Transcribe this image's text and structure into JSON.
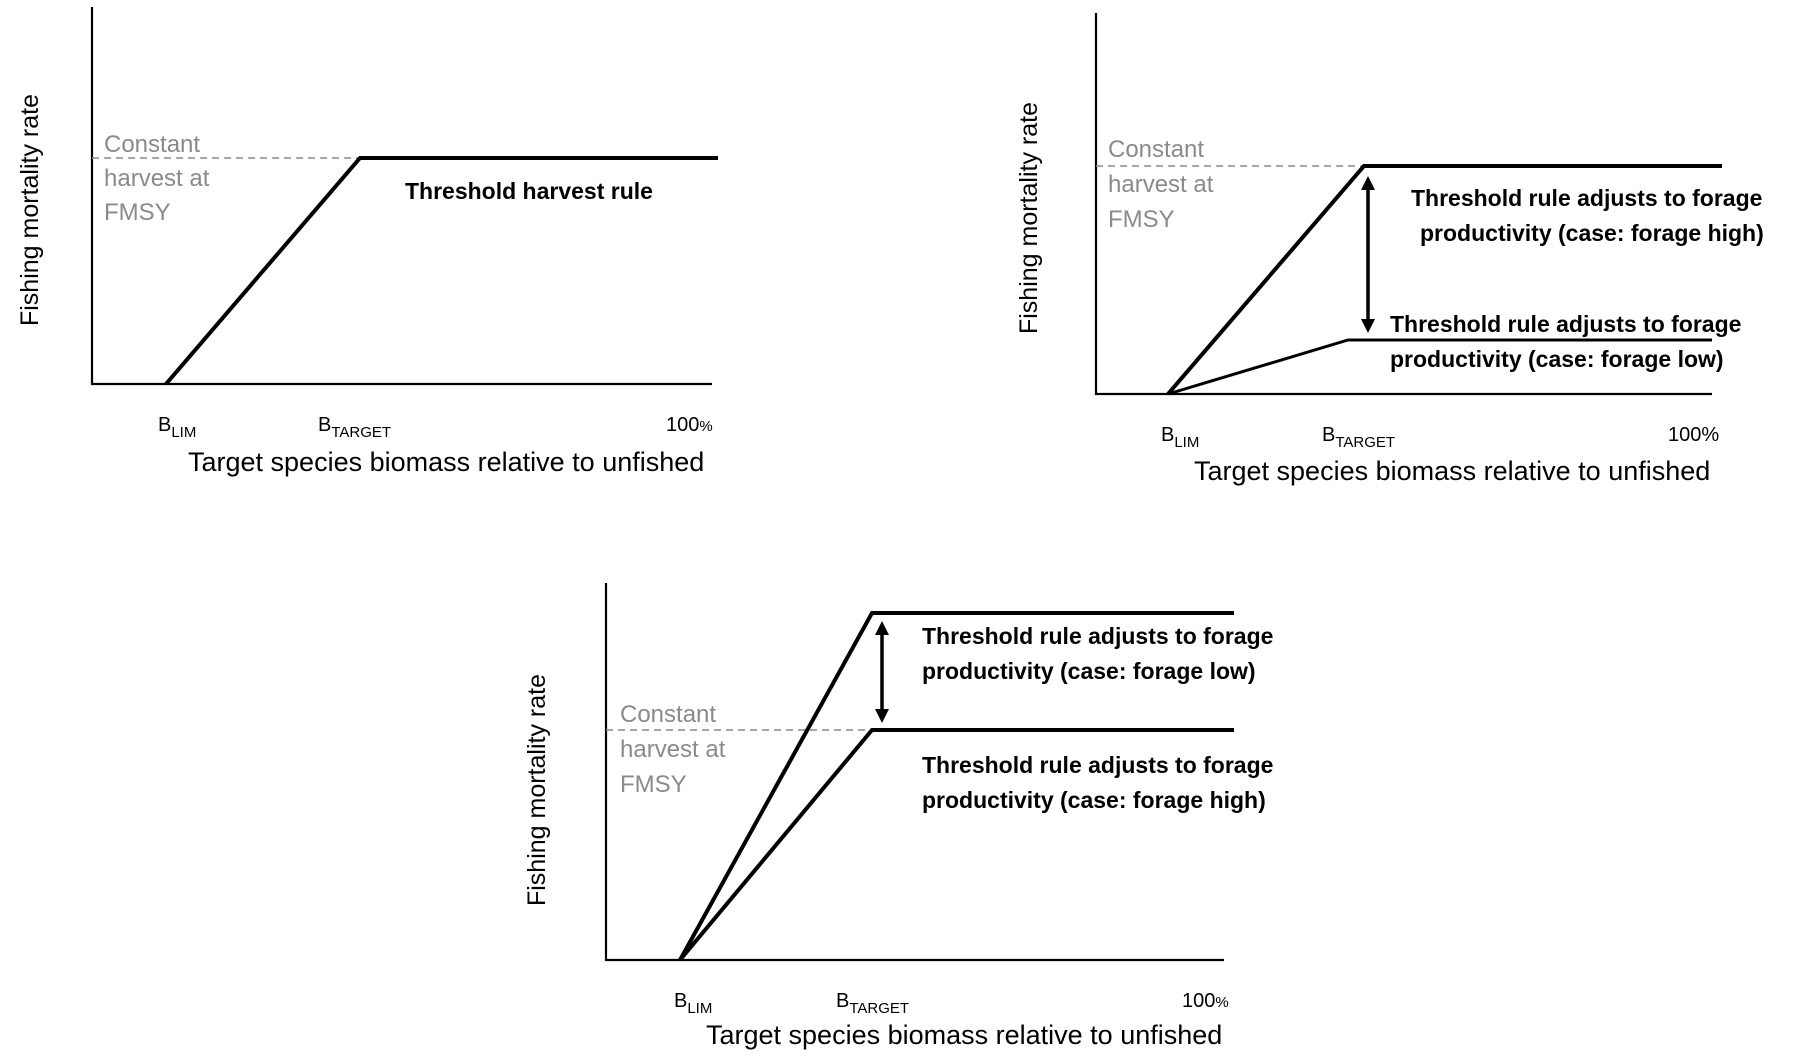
{
  "axis_labels": {
    "y": "Fishing mortality rate",
    "x": "Target species biomass relative to unfished"
  },
  "ticks": {
    "b": "B",
    "lim_sub": "LIM",
    "target_sub": "TARGET",
    "hundred": "100",
    "percent": "%",
    "hundred_full": "100%"
  },
  "constant_harvest": [
    "Constant",
    "harvest at",
    "FMSY"
  ],
  "panel1": {
    "rule_label": "Threshold harvest rule"
  },
  "panel2": {
    "high_label": [
      "Threshold rule adjusts to forage",
      "productivity (case: forage high)"
    ],
    "low_label": [
      "Threshold rule adjusts to forage",
      "productivity (case: forage low)"
    ]
  },
  "panel3": {
    "low_label": [
      "Threshold rule adjusts to forage",
      "productivity (case: forage low)"
    ],
    "high_label": [
      "Threshold rule adjusts to forage",
      "productivity (case: forage high)"
    ]
  }
}
